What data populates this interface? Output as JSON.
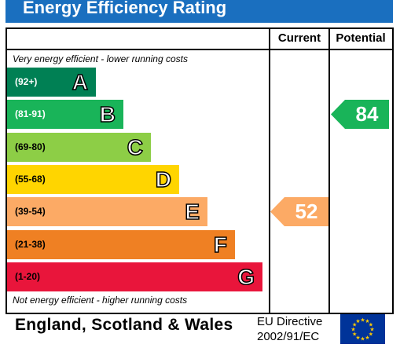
{
  "header": {
    "title": "Energy Efficiency Rating"
  },
  "columns": {
    "current": "Current",
    "potential": "Potential"
  },
  "notes": {
    "top": "Very energy efficient - lower running costs",
    "bottom": "Not energy efficient - higher running costs"
  },
  "chart_data": {
    "type": "bar",
    "title": "Energy Efficiency Rating",
    "bands": [
      {
        "range": "(92+)",
        "letter": "A",
        "color": "#008054"
      },
      {
        "range": "(81-91)",
        "letter": "B",
        "color": "#19b459"
      },
      {
        "range": "(69-80)",
        "letter": "C",
        "color": "#8dce46"
      },
      {
        "range": "(55-68)",
        "letter": "D",
        "color": "#ffd500"
      },
      {
        "range": "(39-54)",
        "letter": "E",
        "color": "#fcaa65"
      },
      {
        "range": "(21-38)",
        "letter": "F",
        "color": "#ef8023"
      },
      {
        "range": "(1-20)",
        "letter": "G",
        "color": "#e9153b"
      }
    ],
    "current": {
      "value": 52,
      "band": "E",
      "color": "#fcaa65"
    },
    "potential": {
      "value": 84,
      "band": "B",
      "color": "#19b459"
    }
  },
  "footer": {
    "region": "England, Scotland & Wales",
    "directive_line1": "EU Directive",
    "directive_line2": "2002/91/EC"
  }
}
